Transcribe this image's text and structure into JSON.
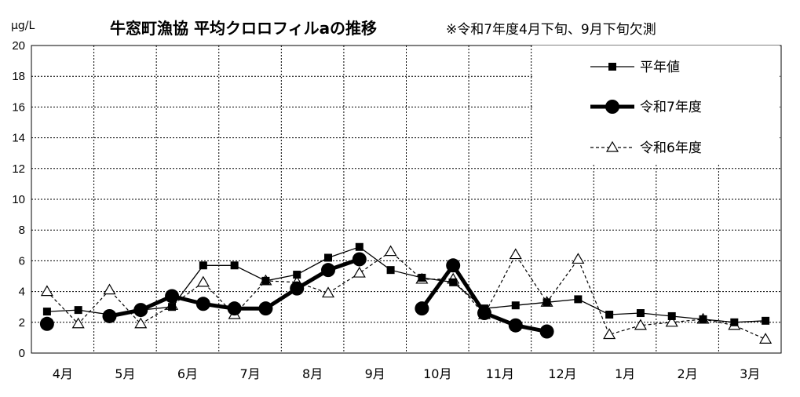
{
  "chart_data": {
    "type": "line",
    "title": "牛窓町漁協 平均クロロフィルaの推移",
    "note": "※令和7年度4月下旬、9月下旬欠測",
    "ylabel": "μg/L",
    "ylim": [
      0,
      20
    ],
    "yticks": [
      "0",
      "2",
      "4",
      "6",
      "8",
      "10",
      "12",
      "14",
      "16",
      "18",
      "20"
    ],
    "months": [
      "4月",
      "5月",
      "6月",
      "7月",
      "8月",
      "9月",
      "10月",
      "11月",
      "12月",
      "1月",
      "2月",
      "3月"
    ],
    "grid": true,
    "legend_position": "top-right",
    "x": [
      1,
      2,
      3,
      4,
      5,
      6,
      7,
      8,
      9,
      10,
      11,
      12,
      13,
      14,
      15,
      16,
      17,
      18,
      19,
      20,
      21,
      22,
      23,
      24
    ],
    "series": [
      {
        "name": "平年値",
        "style": "thin-square",
        "color": "#000000",
        "values": [
          2.7,
          2.8,
          2.5,
          2.8,
          3.0,
          5.7,
          5.7,
          4.7,
          5.1,
          6.2,
          6.9,
          5.4,
          4.9,
          4.6,
          2.9,
          3.1,
          3.3,
          3.5,
          2.5,
          2.6,
          2.4,
          2.2,
          2.0,
          2.1
        ]
      },
      {
        "name": "令和7年度",
        "style": "thick-circle",
        "color": "#000000",
        "values": [
          1.9,
          null,
          2.4,
          2.8,
          3.7,
          3.2,
          2.9,
          2.9,
          4.2,
          5.4,
          6.1,
          null,
          2.9,
          5.7,
          2.6,
          1.8,
          1.4,
          null,
          null,
          null,
          null,
          null,
          null,
          null
        ]
      },
      {
        "name": "令和6年度",
        "style": "dashed-triangle",
        "color": "#000000",
        "values": [
          4.0,
          1.9,
          4.1,
          1.9,
          3.1,
          4.6,
          2.5,
          4.7,
          4.6,
          3.9,
          5.2,
          6.6,
          4.8,
          4.8,
          2.5,
          6.4,
          3.3,
          6.1,
          1.2,
          1.8,
          2.0,
          2.2,
          1.8,
          0.9
        ]
      }
    ]
  }
}
